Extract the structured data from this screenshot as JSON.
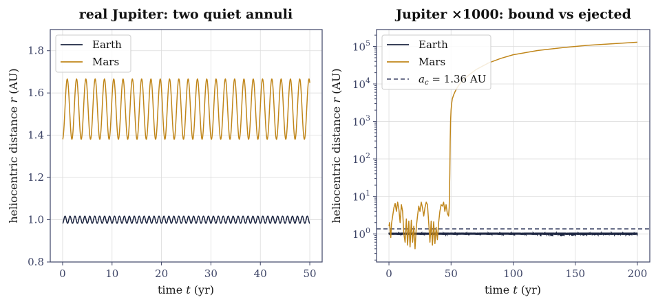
{
  "chart_data": [
    {
      "type": "line",
      "title": "real Jupiter: two quiet annuli",
      "xlabel": "time t (yr)",
      "ylabel": "heliocentric distance r (AU)",
      "xlim": [
        -2.5,
        52.5
      ],
      "ylim": [
        0.8,
        1.9
      ],
      "xticks": [
        0,
        10,
        20,
        30,
        40,
        50
      ],
      "yticks": [
        0.8,
        1.0,
        1.2,
        1.4,
        1.6,
        1.8
      ],
      "ytick_labels": [
        "0.8",
        "1.0",
        "1.2",
        "1.4",
        "1.6",
        "1.8"
      ],
      "grid": true,
      "legend": "top-left",
      "series": [
        {
          "name": "Earth",
          "color": "#1c2541",
          "x_range": [
            0,
            50
          ],
          "min": 0.983,
          "max": 1.017,
          "period": 1.0,
          "phase": 0
        },
        {
          "name": "Mars",
          "color": "#c0861a",
          "x_range": [
            0,
            50
          ],
          "min": 1.381,
          "max": 1.666,
          "period": 1.881,
          "phase": 0
        }
      ]
    },
    {
      "type": "line",
      "title": "Jupiter ×1000: bound vs ejected",
      "xlabel": "time t (yr)",
      "ylabel": "heliocentric distance r (AU)",
      "yscale": "log",
      "xlim": [
        -10,
        210
      ],
      "ylim_log10": [
        -0.75,
        5.45
      ],
      "xticks": [
        0,
        50,
        100,
        150,
        200
      ],
      "yticks": [
        1,
        10,
        100,
        1000,
        10000,
        100000
      ],
      "ytick_labels": [
        "10^0",
        "10^1",
        "10^2",
        "10^3",
        "10^4",
        "10^5"
      ],
      "grid": true,
      "legend": "top-left",
      "reference_line": {
        "name": "a_c = 1.36 AU",
        "y": 1.36,
        "color": "#3d4466",
        "dash": true
      },
      "series": [
        {
          "name": "Earth",
          "color": "#1c2541",
          "x_range": [
            0,
            200
          ],
          "min": 0.93,
          "max": 1.08
        },
        {
          "name": "Mars",
          "color": "#c0861a",
          "x": [
            0,
            0.5,
            1.0,
            1.5,
            2.0,
            3.0,
            4.0,
            5.0,
            6.0,
            7.0,
            8.0,
            9.0,
            10.0,
            11.0,
            12.0,
            13.0,
            14.0,
            15.0,
            16.0,
            17.0,
            18.0,
            19.0,
            20.0,
            21.0,
            22.0,
            23.0,
            24.0,
            25.0,
            26.0,
            27.0,
            28.0,
            29.0,
            30.0,
            31.0,
            32.0,
            33.0,
            34.0,
            35.0,
            36.0,
            37.0,
            38.0,
            39.0,
            40.0,
            41.0,
            42.0,
            43.0,
            44.0,
            45.0,
            46.0,
            47.0,
            48.0,
            48.5,
            49.0,
            49.3,
            49.6,
            50.0,
            50.5,
            51.0,
            52.0,
            53.0,
            55.0,
            57.0,
            60.0,
            65.0,
            70.0,
            80.0,
            90.0,
            100.0,
            120.0,
            140.0,
            160.0,
            180.0,
            200.0
          ],
          "y": [
            1.6,
            2.0,
            1.1,
            0.8,
            1.8,
            3.0,
            5.0,
            6.5,
            4.0,
            7.0,
            4.5,
            2.0,
            6.0,
            4.0,
            1.0,
            0.6,
            2.5,
            0.5,
            2.2,
            0.45,
            2.3,
            0.6,
            1.6,
            0.4,
            1.5,
            3.0,
            5.5,
            4.0,
            7.0,
            5.0,
            3.0,
            5.0,
            7.0,
            6.0,
            2.0,
            0.6,
            2.2,
            0.5,
            2.1,
            0.55,
            1.5,
            0.7,
            2.0,
            4.0,
            6.0,
            5.5,
            7.0,
            4.0,
            6.0,
            3.5,
            3.0,
            5.0,
            40,
            300,
            1000,
            2000,
            3000,
            4000,
            5000,
            6000,
            8000,
            10000,
            13000,
            18000,
            24000,
            36000,
            48000,
            60000,
            78000,
            93000,
            107000,
            118000,
            130000
          ]
        }
      ]
    }
  ]
}
